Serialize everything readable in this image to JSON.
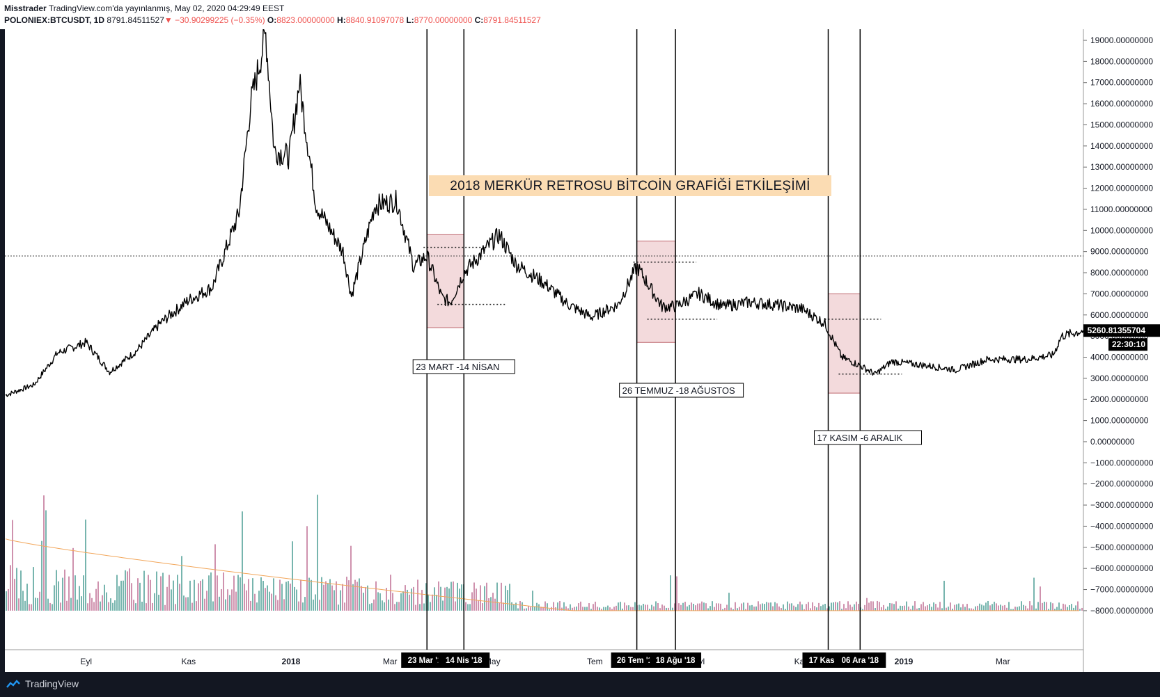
{
  "header": {
    "author": "Misstrader",
    "published": "TradingView.com'da yayınlanmış, May 02, 2020 04:29:49 EEST",
    "symbol": "POLONIEX:BTCUSDT, 1D",
    "last": "8791.84511527",
    "change": "−30.90299225 (−0.35%)",
    "o_label": "O:",
    "o_value": "8823.00000000",
    "h_label": "H:",
    "h_value": "8840.91097078",
    "l_label": "L:",
    "l_value": "8770.00000000",
    "c_label": "C:",
    "c_value": "8791.84511527"
  },
  "footer": {
    "brand": "TradingView"
  },
  "colors": {
    "candle": "#000000",
    "vol_up": "#5fa8a0",
    "vol_down": "#c77fa0",
    "vol_ma": "#f2a65a",
    "box_fill": "#f2d7d9",
    "box_stroke": "#b7575f",
    "title_bg": "#fbdcb3"
  },
  "chart_data": {
    "type": "line",
    "title": "2018 MERKÜR RETROSU BİTCOİN GRAFİĞİ ETKİLEŞİMİ",
    "y_axis": {
      "ticks": [
        "19000.00000000",
        "18000.00000000",
        "17000.00000000",
        "16000.00000000",
        "15000.00000000",
        "14000.00000000",
        "13000.00000000",
        "12000.00000000",
        "11000.00000000",
        "10000.00000000",
        "9000.00000000",
        "8000.00000000",
        "7000.00000000",
        "6000.00000000",
        "5000.00000000",
        "4000.00000000",
        "3000.00000000",
        "2000.00000000",
        "1000.00000000",
        "0.00000000",
        "−1000.00000000",
        "−2000.00000000",
        "−3000.00000000",
        "−4000.00000000",
        "−5000.00000000",
        "−6000.00000000",
        "−7000.00000000",
        "−8000.00000000"
      ],
      "ylim": [
        -8500,
        19500
      ]
    },
    "x_axis": {
      "ticks": [
        "Eyl",
        "Kas",
        "2018",
        "Mar",
        "May",
        "Tem",
        "Eyl",
        "Kas",
        "2019",
        "Mar"
      ],
      "highlight_ticks": [
        "23 Mar '18",
        "14 Nis '18",
        "26 Tem '18",
        "18 Ağu '18",
        "17 Kas '18",
        "06 Ara '18"
      ]
    },
    "price_points": [
      [
        "2017-07-15",
        2200
      ],
      [
        "2017-08-01",
        2700
      ],
      [
        "2017-08-15",
        4200
      ],
      [
        "2017-09-01",
        4700
      ],
      [
        "2017-09-15",
        3300
      ],
      [
        "2017-10-01",
        4300
      ],
      [
        "2017-10-15",
        5600
      ],
      [
        "2017-11-01",
        6700
      ],
      [
        "2017-11-15",
        7300
      ],
      [
        "2017-12-01",
        10800
      ],
      [
        "2017-12-08",
        16000
      ],
      [
        "2017-12-17",
        19300
      ],
      [
        "2017-12-22",
        13800
      ],
      [
        "2017-12-31",
        13500
      ],
      [
        "2018-01-06",
        17000
      ],
      [
        "2018-01-16",
        11200
      ],
      [
        "2018-02-01",
        9000
      ],
      [
        "2018-02-06",
        6900
      ],
      [
        "2018-02-20",
        11200
      ],
      [
        "2018-03-05",
        11400
      ],
      [
        "2018-03-15",
        8300
      ],
      [
        "2018-03-23",
        8800
      ],
      [
        "2018-04-01",
        6800
      ],
      [
        "2018-04-06",
        6600
      ],
      [
        "2018-04-14",
        8000
      ],
      [
        "2018-05-05",
        9800
      ],
      [
        "2018-05-15",
        8400
      ],
      [
        "2018-06-01",
        7500
      ],
      [
        "2018-06-15",
        6500
      ],
      [
        "2018-06-29",
        5900
      ],
      [
        "2018-07-15",
        6500
      ],
      [
        "2018-07-26",
        8300
      ],
      [
        "2018-08-10",
        6400
      ],
      [
        "2018-08-18",
        6400
      ],
      [
        "2018-09-01",
        7000
      ],
      [
        "2018-09-15",
        6400
      ],
      [
        "2018-10-01",
        6600
      ],
      [
        "2018-10-15",
        6500
      ],
      [
        "2018-11-01",
        6300
      ],
      [
        "2018-11-15",
        5600
      ],
      [
        "2018-11-25",
        4000
      ],
      [
        "2018-12-06",
        3600
      ],
      [
        "2018-12-15",
        3200
      ],
      [
        "2018-12-25",
        3800
      ],
      [
        "2019-01-15",
        3600
      ],
      [
        "2019-02-01",
        3400
      ],
      [
        "2019-02-20",
        3900
      ],
      [
        "2019-03-15",
        3900
      ],
      [
        "2019-03-31",
        4100
      ],
      [
        "2019-04-05",
        5000
      ],
      [
        "2019-04-18",
        5260
      ]
    ],
    "volume_ma_start": -4600,
    "volume_ma_end": -8000,
    "current_price_label": "5260.81355704",
    "countdown_label": "22:30:10",
    "reference_line": 8790,
    "retro_periods": [
      {
        "label": "23 MART -14 NİSAN",
        "start": "23 Mar '18",
        "end": "14 Nis '18",
        "box_high": 9800,
        "box_low": 5400,
        "dots_high": 9200,
        "dots_low": 6500
      },
      {
        "label": "26 TEMMUZ -18 AĞUSTOS",
        "start": "26 Tem '18",
        "end": "18 Ağu '18",
        "box_high": 9500,
        "box_low": 4700,
        "dots_high": 8500,
        "dots_low": 5800
      },
      {
        "label": "17 KASIM -6 ARALIK",
        "start": "17 Kas '18",
        "end": "06 Ara '18",
        "box_high": 7000,
        "box_low": 2300,
        "dots_high": 5800,
        "dots_low": 3200
      }
    ]
  }
}
